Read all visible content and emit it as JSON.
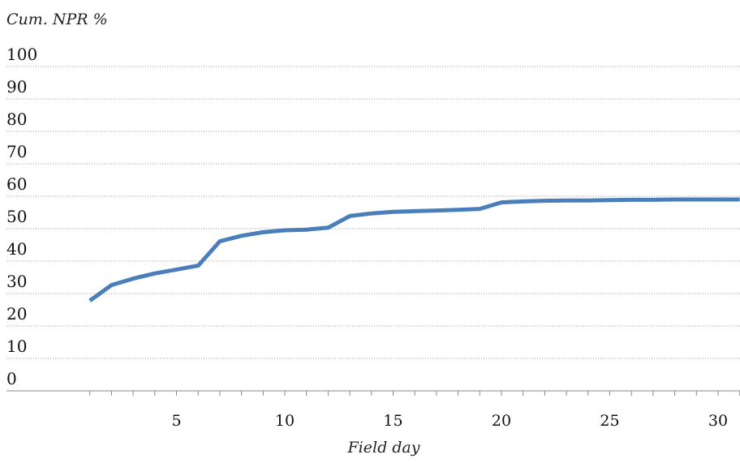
{
  "chart_data": {
    "type": "line",
    "title": "",
    "ylabel": "Cum. NPR %",
    "xlabel": "Field day",
    "ylim": [
      0,
      100
    ],
    "xlim": [
      0,
      31
    ],
    "yticks": [
      0,
      10,
      20,
      30,
      40,
      50,
      60,
      70,
      80,
      90,
      100
    ],
    "xticks": [
      5,
      10,
      15,
      20,
      25,
      30
    ],
    "grid": "horizontal-dotted",
    "color": "#4a7ebb",
    "x": [
      1,
      2,
      3,
      4,
      5,
      6,
      7,
      8,
      9,
      10,
      11,
      12,
      13,
      14,
      15,
      16,
      17,
      18,
      19,
      20,
      21,
      22,
      23,
      24,
      25,
      26,
      27,
      28,
      29,
      30,
      31
    ],
    "values": [
      27.8,
      32.6,
      34.6,
      36.2,
      37.4,
      38.6,
      46.1,
      47.8,
      48.9,
      49.5,
      49.7,
      50.3,
      53.9,
      54.7,
      55.2,
      55.4,
      55.6,
      55.8,
      56.1,
      58.1,
      58.4,
      58.6,
      58.7,
      58.7,
      58.8,
      58.9,
      58.9,
      59.0,
      59.0,
      59.0,
      59.0
    ]
  }
}
